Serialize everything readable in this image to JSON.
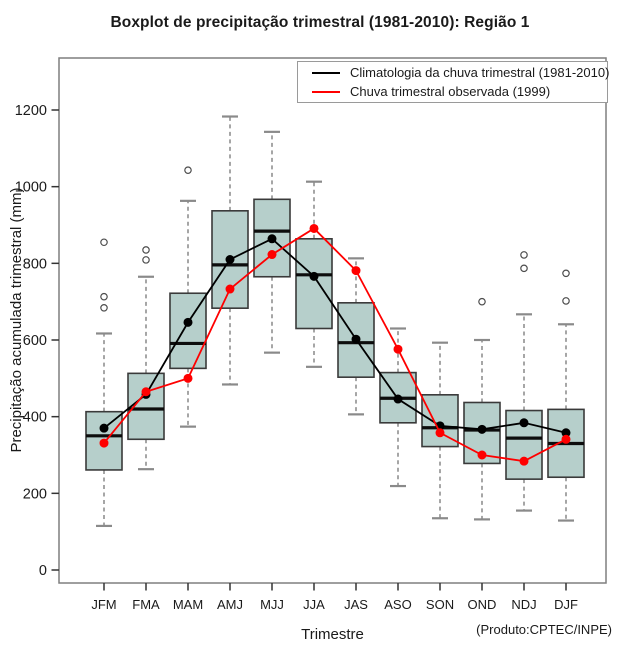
{
  "title": "Boxplot de precipitação trimestral (1981-2010): Região 1",
  "axes": {
    "y_label": "Precipitação acumulada trimestral (mm)",
    "x_label": "Trimestre"
  },
  "credit": "(Produto:CPTEC/INPE)",
  "legend": [
    {
      "label": "Climatologia da chuva trimestral (1981-2010)",
      "color": "#000000"
    },
    {
      "label": "Chuva trimestral observada (1999)",
      "color": "#ff0000"
    }
  ],
  "colors": {
    "box_fill": "#b6cfcb",
    "box_border": "#3a3a3a",
    "median": "#0d0d0d",
    "whisker": "#777777",
    "outlier": "#4d4d4d",
    "plot_border": "#7f7f7f",
    "tick": "#333333",
    "climatology": "#000000",
    "observed": "#ff0000"
  },
  "chart_data": {
    "type": "boxplot",
    "title": "Boxplot de precipitação trimestral (1981-2010): Região 1",
    "xlabel": "Trimestre",
    "ylabel": "Precipitação acumulada trimestral (mm)",
    "ylim": [
      0,
      1300
    ],
    "y_ticks": [
      0,
      200,
      400,
      600,
      800,
      1000,
      1200
    ],
    "grid": false,
    "legend_position": "top-right",
    "categories": [
      "JFM",
      "FMA",
      "MAM",
      "AMJ",
      "MJJ",
      "JJA",
      "JAS",
      "ASO",
      "SON",
      "OND",
      "NDJ",
      "DJF"
    ],
    "boxes": [
      {
        "category": "JFM",
        "whisker_low": 115,
        "q1": 261,
        "median": 350,
        "q3": 413,
        "whisker_high": 617,
        "outliers": [
          855,
          713,
          684
        ]
      },
      {
        "category": "FMA",
        "whisker_low": 263,
        "q1": 341,
        "median": 420,
        "q3": 513,
        "whisker_high": 765,
        "outliers": [
          835,
          809
        ]
      },
      {
        "category": "MAM",
        "whisker_low": 374,
        "q1": 526,
        "median": 591,
        "q3": 722,
        "whisker_high": 963,
        "outliers": [
          1043
        ]
      },
      {
        "category": "AMJ",
        "whisker_low": 484,
        "q1": 683,
        "median": 796,
        "q3": 937,
        "whisker_high": 1183,
        "outliers": []
      },
      {
        "category": "MJJ",
        "whisker_low": 567,
        "q1": 765,
        "median": 884,
        "q3": 967,
        "whisker_high": 1143,
        "outliers": []
      },
      {
        "category": "JJA",
        "whisker_low": 530,
        "q1": 630,
        "median": 770,
        "q3": 864,
        "whisker_high": 1013,
        "outliers": []
      },
      {
        "category": "JAS",
        "whisker_low": 406,
        "q1": 503,
        "median": 593,
        "q3": 697,
        "whisker_high": 813,
        "outliers": []
      },
      {
        "category": "ASO",
        "whisker_low": 219,
        "q1": 384,
        "median": 448,
        "q3": 515,
        "whisker_high": 630,
        "outliers": []
      },
      {
        "category": "SON",
        "whisker_low": 135,
        "q1": 322,
        "median": 371,
        "q3": 457,
        "whisker_high": 593,
        "outliers": []
      },
      {
        "category": "OND",
        "whisker_low": 132,
        "q1": 278,
        "median": 365,
        "q3": 437,
        "whisker_high": 600,
        "outliers": [
          700
        ]
      },
      {
        "category": "NDJ",
        "whisker_low": 155,
        "q1": 237,
        "median": 344,
        "q3": 416,
        "whisker_high": 667,
        "outliers": [
          822,
          787
        ]
      },
      {
        "category": "DJF",
        "whisker_low": 129,
        "q1": 242,
        "median": 330,
        "q3": 419,
        "whisker_high": 641,
        "outliers": [
          774,
          702
        ]
      }
    ],
    "series": [
      {
        "name": "Climatologia da chuva trimestral (1981-2010)",
        "color": "#000000",
        "values": [
          370,
          458,
          646,
          810,
          864,
          766,
          602,
          446,
          376,
          367,
          384,
          358
        ]
      },
      {
        "name": "Chuva trimestral observada (1999)",
        "color": "#ff0000",
        "values": [
          331,
          465,
          500,
          733,
          823,
          891,
          781,
          576,
          358,
          300,
          284,
          341
        ]
      }
    ]
  }
}
